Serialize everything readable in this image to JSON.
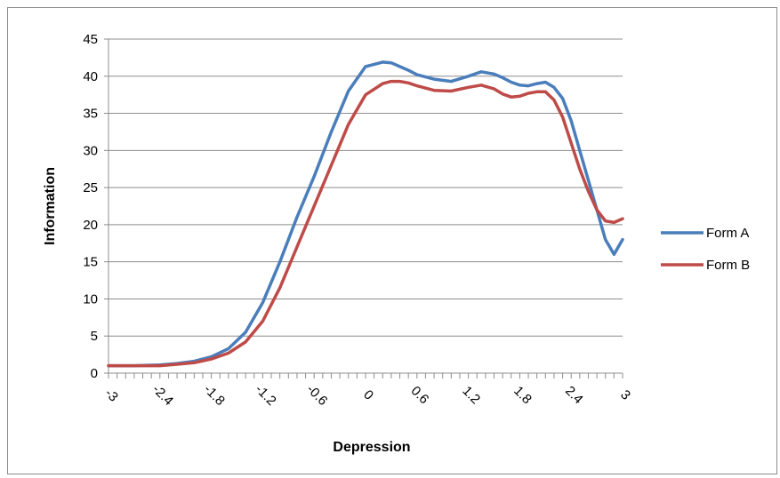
{
  "chart_data": {
    "type": "line",
    "title": "",
    "xlabel": "Depression",
    "ylabel": "Information",
    "xlim": [
      -3,
      3
    ],
    "ylim": [
      0,
      45
    ],
    "yticks": [
      0,
      5,
      10,
      15,
      20,
      25,
      30,
      35,
      40,
      45
    ],
    "xtick_labels": [
      "-3",
      "-2.4",
      "-1.8",
      "-1.2",
      "-0.6",
      "0",
      "0.6",
      "1.2",
      "1.8",
      "2.4",
      "3"
    ],
    "grid": "horizontal",
    "legend_position": "right",
    "series": [
      {
        "name": "Form A",
        "color": "#4a7ebb",
        "x": [
          -3.0,
          -2.7,
          -2.4,
          -2.2,
          -2.0,
          -1.8,
          -1.6,
          -1.4,
          -1.2,
          -1.0,
          -0.8,
          -0.6,
          -0.4,
          -0.2,
          0.0,
          0.2,
          0.3,
          0.4,
          0.5,
          0.6,
          0.8,
          1.0,
          1.2,
          1.35,
          1.5,
          1.6,
          1.7,
          1.8,
          1.9,
          2.0,
          2.1,
          2.2,
          2.3,
          2.4,
          2.5,
          2.6,
          2.7,
          2.8,
          2.9,
          3.0
        ],
        "values": [
          1.0,
          1.0,
          1.1,
          1.3,
          1.6,
          2.2,
          3.3,
          5.5,
          9.5,
          15.0,
          21.0,
          26.5,
          32.5,
          38.0,
          41.3,
          41.9,
          41.8,
          41.3,
          40.8,
          40.2,
          39.6,
          39.3,
          40.0,
          40.6,
          40.3,
          39.8,
          39.2,
          38.8,
          38.7,
          39.0,
          39.2,
          38.5,
          37.0,
          34.0,
          30.0,
          26.0,
          22.0,
          18.0,
          16.0,
          18.0
        ]
      },
      {
        "name": "Form B",
        "color": "#be4b48",
        "x": [
          -3.0,
          -2.7,
          -2.4,
          -2.2,
          -2.0,
          -1.8,
          -1.6,
          -1.4,
          -1.2,
          -1.0,
          -0.8,
          -0.6,
          -0.4,
          -0.2,
          0.0,
          0.2,
          0.3,
          0.4,
          0.5,
          0.6,
          0.8,
          1.0,
          1.2,
          1.35,
          1.5,
          1.6,
          1.7,
          1.8,
          1.9,
          2.0,
          2.1,
          2.2,
          2.3,
          2.4,
          2.5,
          2.6,
          2.7,
          2.8,
          2.9,
          3.0
        ],
        "values": [
          1.0,
          1.0,
          1.0,
          1.2,
          1.4,
          1.9,
          2.7,
          4.2,
          7.0,
          11.5,
          17.0,
          22.5,
          28.0,
          33.5,
          37.5,
          39.0,
          39.3,
          39.3,
          39.1,
          38.7,
          38.1,
          38.0,
          38.5,
          38.8,
          38.3,
          37.6,
          37.2,
          37.3,
          37.7,
          37.9,
          37.9,
          36.8,
          34.5,
          31.0,
          27.5,
          24.5,
          22.0,
          20.5,
          20.3,
          20.8
        ]
      }
    ]
  }
}
